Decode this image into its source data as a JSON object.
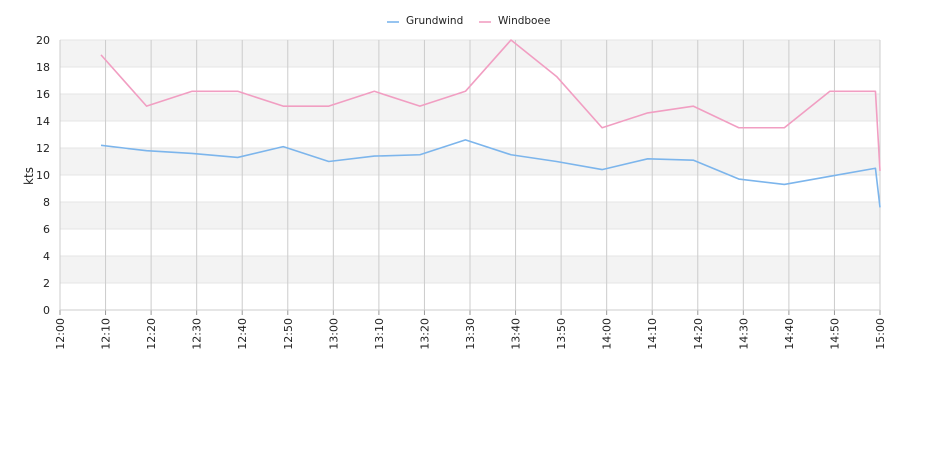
{
  "chart_data": {
    "type": "line",
    "title": "",
    "xlabel": "",
    "ylabel": "kts",
    "ylim": [
      0,
      20
    ],
    "yticks": [
      0,
      2,
      4,
      6,
      8,
      10,
      12,
      14,
      16,
      18,
      20
    ],
    "xticks": [
      "12:00",
      "12:10",
      "12:20",
      "12:30",
      "12:40",
      "12:50",
      "13:00",
      "13:10",
      "13:20",
      "13:30",
      "13:40",
      "13:50",
      "14:00",
      "14:10",
      "14:20",
      "14:30",
      "14:40",
      "14:50",
      "15:00"
    ],
    "grid": "alternating horizontal bands, vertical lines",
    "legend": "top-center",
    "x_minutes": [
      9,
      19,
      29,
      39,
      49,
      59,
      69,
      79,
      89,
      99,
      109,
      119,
      129,
      139,
      149,
      159,
      169,
      179,
      180
    ],
    "series": [
      {
        "name": "Grundwind",
        "color": "#7cb5ec",
        "values": [
          12.2,
          11.8,
          11.6,
          11.3,
          12.1,
          11.0,
          11.4,
          11.5,
          12.6,
          11.5,
          11.0,
          10.4,
          11.2,
          11.1,
          9.7,
          9.3,
          9.9,
          10.5,
          7.6
        ]
      },
      {
        "name": "Windboee",
        "color": "#f19ec2",
        "values": [
          18.9,
          15.1,
          16.2,
          16.2,
          15.1,
          15.1,
          16.2,
          15.1,
          16.2,
          20.0,
          17.3,
          13.5,
          14.6,
          15.1,
          13.5,
          13.5,
          16.2,
          16.2,
          10.3
        ]
      }
    ]
  }
}
